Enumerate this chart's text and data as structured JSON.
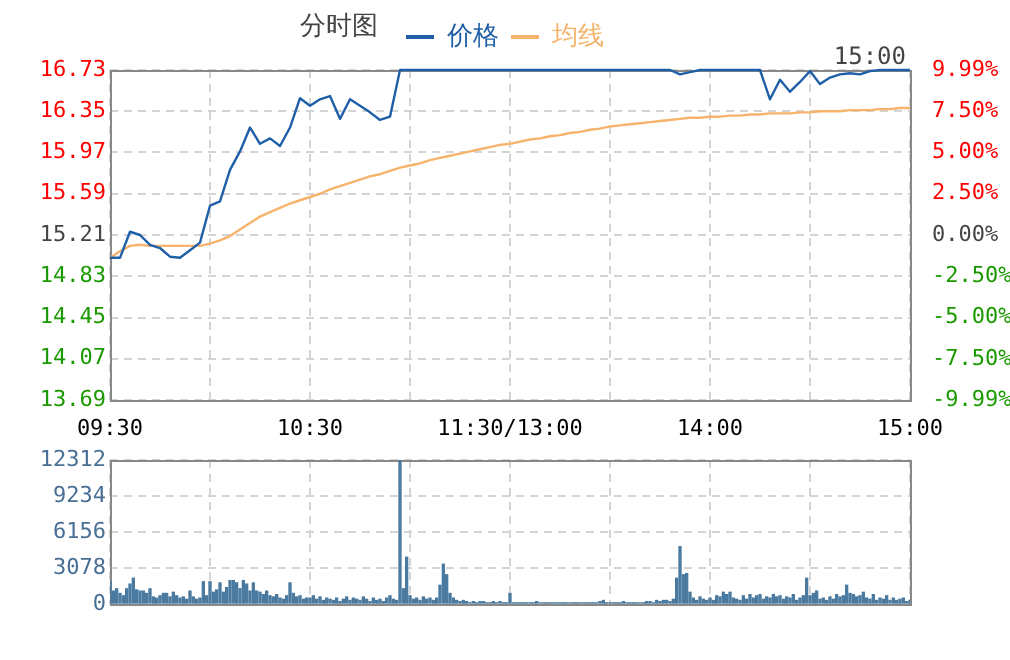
{
  "chart_data": [
    {
      "type": "line",
      "title": "分时图",
      "annotations": [
        "15:00"
      ],
      "legend": "top",
      "categories": [
        "09:30",
        null,
        null,
        null,
        null,
        null,
        null,
        null,
        null,
        null,
        null,
        null,
        null,
        null,
        null,
        null,
        null,
        null,
        null,
        null,
        "10:30",
        null,
        null,
        null,
        null,
        null,
        null,
        null,
        null,
        null,
        null,
        null,
        null,
        null,
        null,
        null,
        null,
        null,
        null,
        null,
        "11:30/13:00",
        null,
        null,
        null,
        null,
        null,
        null,
        null,
        null,
        null,
        null,
        null,
        null,
        null,
        null,
        null,
        null,
        null,
        null,
        null,
        "14:00",
        null,
        null,
        null,
        null,
        null,
        null,
        null,
        null,
        null,
        null,
        null,
        null,
        null,
        null,
        null,
        null,
        null,
        null,
        null,
        "15:00"
      ],
      "ylim": [
        13.69,
        16.73
      ],
      "yticks": [
        13.69,
        14.07,
        14.45,
        14.83,
        15.21,
        15.59,
        15.97,
        16.35,
        16.73
      ],
      "y2lim": [
        -9.99,
        9.99
      ],
      "y2ticks": [
        {
          "value": -9.99,
          "label": "-9.99%"
        },
        {
          "value": -7.5,
          "label": "-7.50%"
        },
        {
          "value": -5,
          "label": "-5.00%"
        },
        {
          "value": -2.5,
          "label": "-2.50%"
        },
        {
          "value": 0,
          "label": "0.00%"
        },
        {
          "value": 2.5,
          "label": "2.50%"
        },
        {
          "value": 5,
          "label": "5.00%"
        },
        {
          "value": 7.5,
          "label": "7.50%"
        },
        {
          "value": 9.99,
          "label": "9.99%"
        }
      ],
      "grid": true,
      "marker": "none",
      "line_style": "solid",
      "series": [
        {
          "name": "价格",
          "color": "#1f5fa8",
          "values": [
            15.0,
            15.0,
            15.24,
            15.21,
            15.12,
            15.09,
            15.01,
            15.0,
            15.07,
            15.14,
            15.48,
            15.52,
            15.81,
            15.98,
            16.2,
            16.05,
            16.1,
            16.03,
            16.2,
            16.47,
            16.4,
            16.46,
            16.49,
            16.28,
            16.46,
            16.4,
            16.34,
            16.27,
            16.3,
            16.73,
            16.73,
            16.73,
            16.73,
            16.73,
            16.73,
            16.73,
            16.73,
            16.73,
            16.73,
            16.73,
            16.73,
            16.73,
            16.73,
            16.73,
            16.73,
            16.73,
            16.73,
            16.73,
            16.73,
            16.73,
            16.73,
            16.73,
            16.73,
            16.73,
            16.73,
            16.73,
            16.73,
            16.69,
            16.71,
            16.73,
            16.73,
            16.73,
            16.73,
            16.73,
            16.73,
            16.73,
            16.46,
            16.64,
            16.53,
            16.62,
            16.72,
            16.6,
            16.66,
            16.69,
            16.7,
            16.69,
            16.72,
            16.73,
            16.73,
            16.73,
            16.73
          ]
        },
        {
          "name": "均线",
          "color": "#f5b36b",
          "values": [
            15.0,
            15.06,
            15.11,
            15.12,
            15.11,
            15.11,
            15.11,
            15.11,
            15.11,
            15.11,
            15.13,
            15.16,
            15.2,
            15.26,
            15.32,
            15.38,
            15.42,
            15.46,
            15.5,
            15.53,
            15.56,
            15.59,
            15.63,
            15.66,
            15.69,
            15.72,
            15.75,
            15.77,
            15.8,
            15.83,
            15.85,
            15.87,
            15.9,
            15.92,
            15.94,
            15.96,
            15.98,
            16.0,
            16.02,
            16.04,
            16.05,
            16.07,
            16.09,
            16.1,
            16.12,
            16.13,
            16.15,
            16.16,
            16.18,
            16.19,
            16.21,
            16.22,
            16.23,
            16.24,
            16.25,
            16.26,
            16.27,
            16.28,
            16.29,
            16.29,
            16.3,
            16.3,
            16.31,
            16.31,
            16.32,
            16.32,
            16.33,
            16.33,
            16.33,
            16.34,
            16.34,
            16.35,
            16.35,
            16.35,
            16.36,
            16.36,
            16.36,
            16.37,
            16.37,
            16.38,
            16.38
          ]
        }
      ]
    },
    {
      "type": "bar",
      "tick_labels": "y",
      "grid": true,
      "categories": [
        null,
        null,
        null,
        null,
        null,
        null,
        null,
        null,
        null,
        null,
        null,
        null,
        null,
        null,
        null,
        null,
        null,
        null,
        null,
        null,
        null,
        null,
        null,
        null,
        null,
        null,
        null,
        null,
        null,
        null,
        null,
        null,
        null,
        null,
        null,
        null,
        null,
        null,
        null,
        null,
        null,
        null,
        null,
        null,
        null,
        null,
        null,
        null,
        null,
        null,
        null,
        null,
        null,
        null,
        null,
        null,
        null,
        null,
        null,
        null,
        null,
        null,
        null,
        null,
        null,
        null,
        null,
        null,
        null,
        null,
        null,
        null,
        null,
        null,
        null,
        null,
        null,
        null,
        null,
        null,
        null,
        null,
        null,
        null,
        null,
        null,
        null,
        null,
        null,
        null,
        null,
        null,
        null,
        null,
        null,
        null,
        null,
        null,
        null,
        null,
        null,
        null,
        null,
        null,
        null,
        null,
        null,
        null,
        null,
        null,
        null,
        null,
        null,
        null,
        null,
        null,
        null,
        null,
        null,
        null,
        null,
        null,
        null,
        null,
        null,
        null,
        null,
        null,
        null,
        null,
        null,
        null,
        null,
        null,
        null,
        null,
        null,
        null,
        null,
        null,
        null,
        null,
        null,
        null,
        null,
        null,
        null,
        null,
        null,
        null,
        null,
        null,
        null,
        null,
        null,
        null,
        null,
        null,
        null,
        null,
        null,
        null,
        null,
        null,
        null,
        null,
        null,
        null,
        null,
        null,
        null,
        null,
        null,
        null,
        null,
        null,
        null,
        null,
        null,
        null,
        null,
        null,
        null,
        null,
        null,
        null,
        null,
        null,
        null,
        null,
        null,
        null,
        null,
        null,
        null,
        null,
        null,
        null,
        null,
        null,
        null,
        null,
        null,
        null,
        null,
        null,
        null,
        null,
        null,
        null,
        null,
        null,
        null,
        null,
        null,
        null,
        null,
        null,
        null,
        null,
        null,
        null,
        null,
        null,
        null,
        null,
        null,
        null,
        null,
        null,
        null,
        null,
        null,
        null,
        null,
        null,
        null,
        null,
        null,
        null,
        null
      ],
      "ylim": [
        0,
        12312
      ],
      "yticks": [
        0,
        3078,
        6156,
        9234,
        12312
      ],
      "color": "#4a7aa0",
      "values": [
        1900,
        1100,
        1300,
        900,
        700,
        1300,
        1700,
        2200,
        1200,
        1100,
        1100,
        900,
        1300,
        600,
        500,
        700,
        900,
        900,
        600,
        1000,
        700,
        500,
        600,
        400,
        1100,
        600,
        400,
        500,
        1900,
        700,
        1900,
        1000,
        1200,
        1800,
        1000,
        1400,
        2000,
        2000,
        1800,
        1300,
        2000,
        1700,
        1100,
        1800,
        1100,
        1000,
        800,
        1100,
        700,
        600,
        800,
        500,
        400,
        700,
        1800,
        900,
        600,
        700,
        400,
        500,
        500,
        700,
        400,
        600,
        300,
        500,
        400,
        300,
        500,
        200,
        400,
        600,
        300,
        500,
        400,
        300,
        600,
        400,
        200,
        500,
        300,
        400,
        200,
        500,
        700,
        400,
        300,
        12312,
        1300,
        4000,
        700,
        400,
        500,
        300,
        600,
        400,
        500,
        300,
        500,
        1600,
        3400,
        2500,
        900,
        500,
        300,
        200,
        300,
        200,
        100,
        200,
        100,
        200,
        200,
        100,
        100,
        200,
        100,
        200,
        100,
        100,
        900,
        100,
        100,
        100,
        100,
        100,
        100,
        100,
        200,
        100,
        100,
        100,
        100,
        100,
        100,
        100,
        100,
        100,
        100,
        100,
        100,
        100,
        100,
        100,
        100,
        100,
        100,
        200,
        300,
        100,
        100,
        100,
        100,
        100,
        200,
        100,
        100,
        100,
        100,
        100,
        100,
        200,
        200,
        100,
        300,
        200,
        300,
        300,
        200,
        400,
        2200,
        4900,
        2500,
        2600,
        1000,
        500,
        300,
        600,
        400,
        300,
        500,
        300,
        700,
        600,
        1000,
        800,
        1000,
        500,
        400,
        300,
        700,
        400,
        800,
        500,
        700,
        800,
        400,
        600,
        500,
        800,
        600,
        700,
        400,
        600,
        500,
        800,
        300,
        500,
        700,
        2200,
        700,
        900,
        1100,
        400,
        500,
        300,
        600,
        400,
        800,
        600,
        700,
        1600,
        900,
        800,
        600,
        700,
        1000,
        500,
        400,
        800,
        300,
        500,
        400,
        700,
        300,
        500,
        300,
        400,
        500,
        200,
        300
      ]
    }
  ]
}
